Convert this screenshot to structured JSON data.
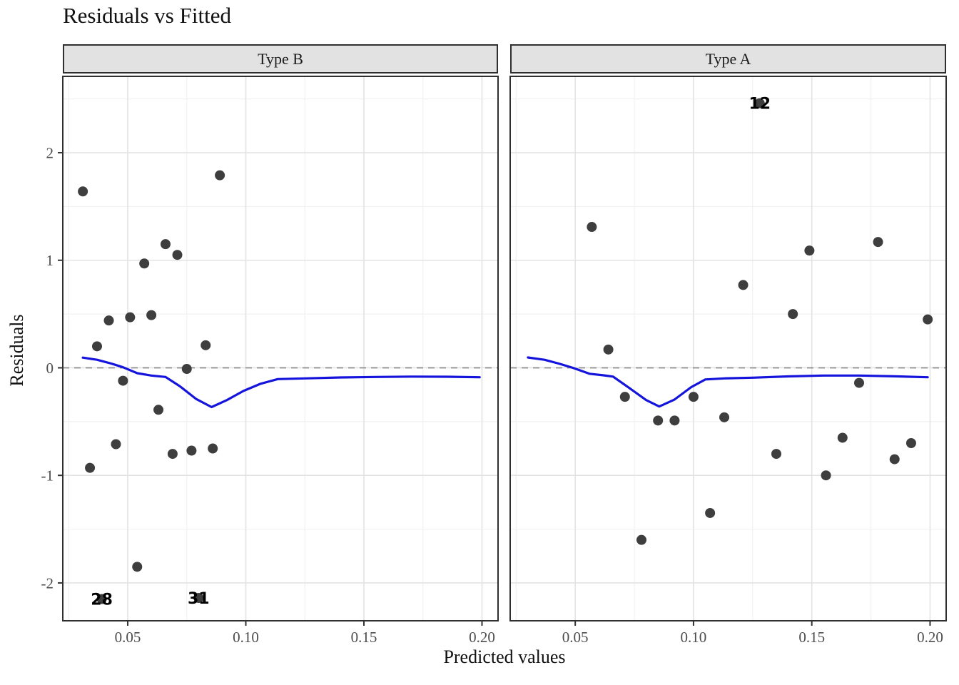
{
  "title": "Residuals vs Fitted",
  "colors": {
    "smooth_line": "#1414DC",
    "point": "#3E3E3E",
    "zero_line": "#8F8F8F",
    "strip_bg": "#E2E2E2",
    "panel_border": "#2F2F2F",
    "grid_major": "#E3E3E3",
    "grid_minor": "#F1F1F1",
    "tick_label": "#4D4D4D",
    "text": "#1A1A1A"
  },
  "chart_data": {
    "type": "scatter",
    "title": "Residuals vs Fitted",
    "xlabel": "Predicted values",
    "ylabel": "Residuals",
    "grid": true,
    "legend": "none",
    "x_domain": [
      0.0225,
      0.2068
    ],
    "y_domain": [
      -2.352,
      2.71
    ],
    "x_ticks": [
      0.05,
      0.1,
      0.15,
      0.2
    ],
    "x_tick_labels": [
      "0.05",
      "0.10",
      "0.15",
      "0.20"
    ],
    "x_minor_ticks": [
      0.025,
      0.075,
      0.125,
      0.175
    ],
    "y_ticks": [
      -2,
      -1,
      0,
      1,
      2
    ],
    "y_tick_labels": [
      "-2",
      "-1",
      "0",
      "1",
      "2"
    ],
    "y_minor_ticks": [
      -1.5,
      -0.5,
      0.5,
      1.5,
      2.5
    ],
    "zero_reference_line": 0,
    "facets": [
      {
        "label": "Type B",
        "points": [
          [
            0.031,
            1.64
          ],
          [
            0.034,
            -0.93
          ],
          [
            0.037,
            0.2
          ],
          [
            0.042,
            0.44
          ],
          [
            0.045,
            -0.71
          ],
          [
            0.048,
            -0.12
          ],
          [
            0.051,
            0.47
          ],
          [
            0.054,
            -1.85
          ],
          [
            0.057,
            0.97
          ],
          [
            0.06,
            0.49
          ],
          [
            0.063,
            -0.39
          ],
          [
            0.066,
            1.15
          ],
          [
            0.069,
            -0.8
          ],
          [
            0.071,
            1.05
          ],
          [
            0.075,
            -0.01
          ],
          [
            0.077,
            -0.77
          ],
          [
            0.083,
            0.21
          ],
          [
            0.086,
            -0.75
          ],
          [
            0.089,
            1.79
          ]
        ],
        "labeled_points": [
          {
            "label": "28",
            "x": 0.039,
            "y": -2.15
          },
          {
            "label": "31",
            "x": 0.08,
            "y": -2.14
          }
        ],
        "smooth": [
          [
            0.031,
            0.095
          ],
          [
            0.037,
            0.075
          ],
          [
            0.043,
            0.04
          ],
          [
            0.048,
            0.005
          ],
          [
            0.054,
            -0.05
          ],
          [
            0.06,
            -0.072
          ],
          [
            0.066,
            -0.085
          ],
          [
            0.072,
            -0.17
          ],
          [
            0.079,
            -0.29
          ],
          [
            0.0855,
            -0.365
          ],
          [
            0.092,
            -0.3
          ],
          [
            0.099,
            -0.215
          ],
          [
            0.106,
            -0.15
          ],
          [
            0.1135,
            -0.105
          ],
          [
            0.125,
            -0.098
          ],
          [
            0.14,
            -0.09
          ],
          [
            0.155,
            -0.085
          ],
          [
            0.17,
            -0.082
          ],
          [
            0.185,
            -0.083
          ],
          [
            0.199,
            -0.088
          ]
        ]
      },
      {
        "label": "Type A",
        "points": [
          [
            0.057,
            1.31
          ],
          [
            0.064,
            0.17
          ],
          [
            0.071,
            -0.27
          ],
          [
            0.078,
            -1.6
          ],
          [
            0.085,
            -0.49
          ],
          [
            0.092,
            -0.49
          ],
          [
            0.1,
            -0.27
          ],
          [
            0.107,
            -1.35
          ],
          [
            0.113,
            -0.46
          ],
          [
            0.121,
            0.77
          ],
          [
            0.135,
            -0.8
          ],
          [
            0.142,
            0.5
          ],
          [
            0.149,
            1.09
          ],
          [
            0.156,
            -1.0
          ],
          [
            0.163,
            -0.65
          ],
          [
            0.17,
            -0.14
          ],
          [
            0.178,
            1.17
          ],
          [
            0.185,
            -0.85
          ],
          [
            0.192,
            -0.7
          ],
          [
            0.199,
            0.45
          ]
        ],
        "labeled_points": [
          {
            "label": "12",
            "x": 0.128,
            "y": 2.46
          }
        ],
        "smooth": [
          [
            0.03,
            0.096
          ],
          [
            0.037,
            0.075
          ],
          [
            0.043,
            0.04
          ],
          [
            0.049,
            0.0
          ],
          [
            0.056,
            -0.055
          ],
          [
            0.062,
            -0.07
          ],
          [
            0.066,
            -0.082
          ],
          [
            0.073,
            -0.19
          ],
          [
            0.08,
            -0.3
          ],
          [
            0.0855,
            -0.36
          ],
          [
            0.092,
            -0.295
          ],
          [
            0.099,
            -0.18
          ],
          [
            0.105,
            -0.108
          ],
          [
            0.113,
            -0.098
          ],
          [
            0.125,
            -0.092
          ],
          [
            0.14,
            -0.08
          ],
          [
            0.155,
            -0.072
          ],
          [
            0.17,
            -0.072
          ],
          [
            0.185,
            -0.079
          ],
          [
            0.199,
            -0.088
          ]
        ]
      }
    ]
  }
}
